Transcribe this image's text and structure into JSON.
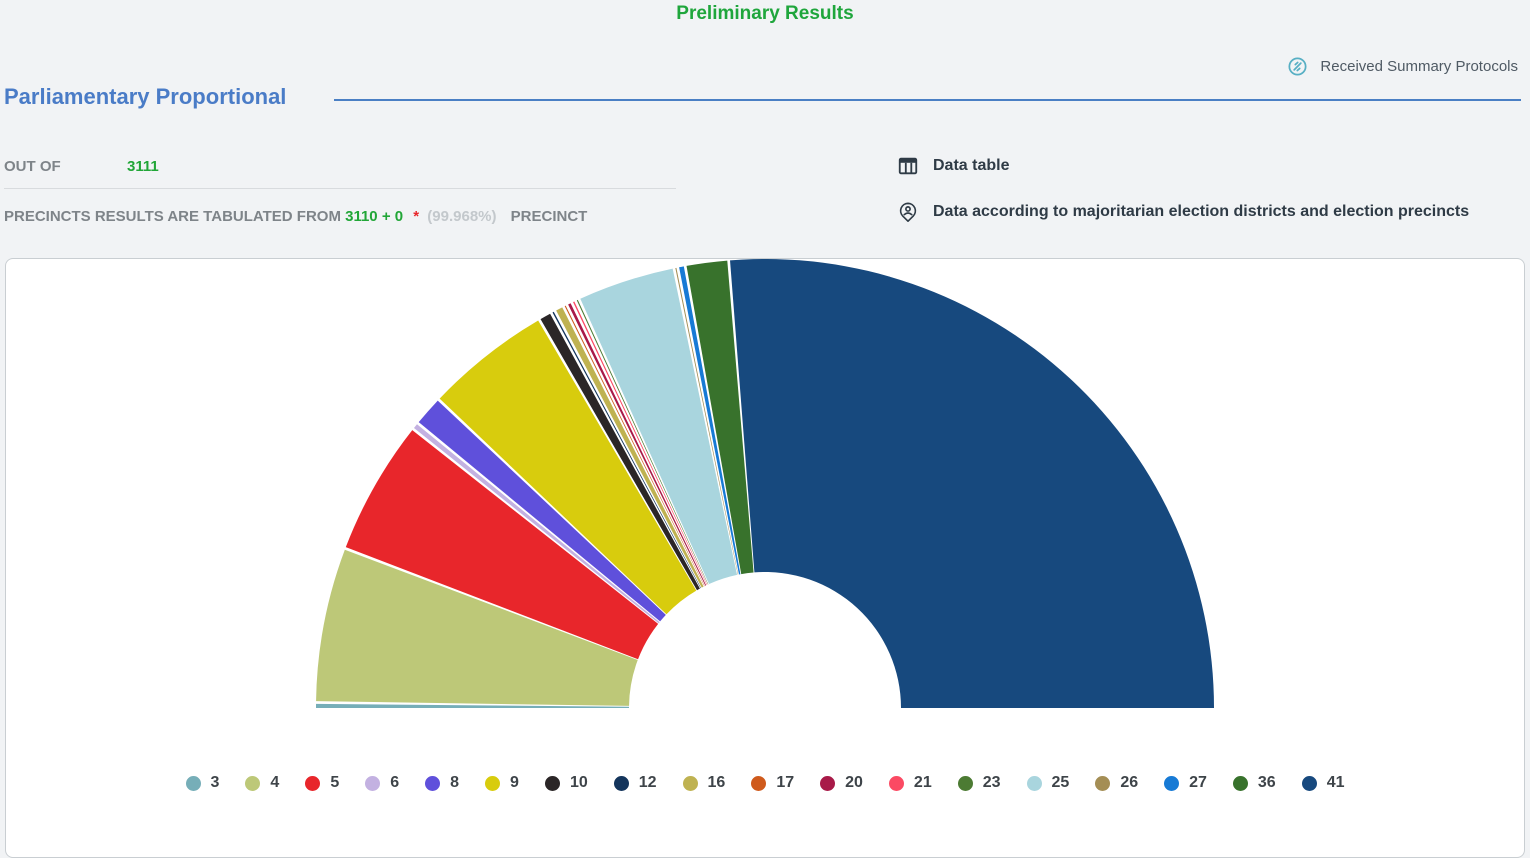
{
  "page": {
    "title": "Preliminary Results"
  },
  "protocols": {
    "label": "Received Summary Protocols"
  },
  "section": {
    "title": "Parliamentary Proportional"
  },
  "stats": {
    "out_of_label": "OUT OF",
    "out_of_value": "3111",
    "tabulated_prefix": "PRECINCTS RESULTS ARE TABULATED FROM",
    "tabulated_value": "3110 + 0",
    "asterisk": "*",
    "percent": "(99.968%)",
    "suffix": "PRECINCT"
  },
  "links": {
    "data_table": "Data table",
    "majoritarian": "Data according to majoritarian election districts and election precincts"
  },
  "colors": {
    "title_green": "#1FA63C",
    "heading_blue": "#4A7CC7",
    "label_gray": "#7E8489",
    "muted_gray": "#C3C8CC",
    "dark_text": "#2F3B46",
    "link_icon_teal": "#57AFC4",
    "asterisk_red": "#E8262B",
    "panel_border": "#C9CED2",
    "page_bg": "#F1F3F5"
  },
  "chart_data": {
    "type": "pie",
    "variant": "half-donut",
    "title": "",
    "legend_position": "bottom",
    "note": "Semi-circular donut of party vote shares by ballot number; no numeric labels shown, values estimated from arc angles (percent).",
    "categories": [
      "3",
      "4",
      "5",
      "6",
      "8",
      "9",
      "10",
      "12",
      "16",
      "17",
      "20",
      "21",
      "23",
      "25",
      "26",
      "27",
      "36",
      "41"
    ],
    "values": [
      0.3,
      11.3,
      9.85,
      0.35,
      2.1,
      9.2,
      0.8,
      0.1,
      0.5,
      0.08,
      0.2,
      0.1,
      0.08,
      7.1,
      0.08,
      0.35,
      3.0,
      54.0
    ],
    "colors": [
      "#76AEB8",
      "#BDC878",
      "#E8262B",
      "#C3B1E1",
      "#5F50DB",
      "#D8CC0D",
      "#2B2627",
      "#14355C",
      "#BFB251",
      "#CF5A1C",
      "#A81A48",
      "#FB4A63",
      "#4C7B33",
      "#A9D5DE",
      "#A48E55",
      "#177AD5",
      "#38722C",
      "#17497E"
    ]
  }
}
